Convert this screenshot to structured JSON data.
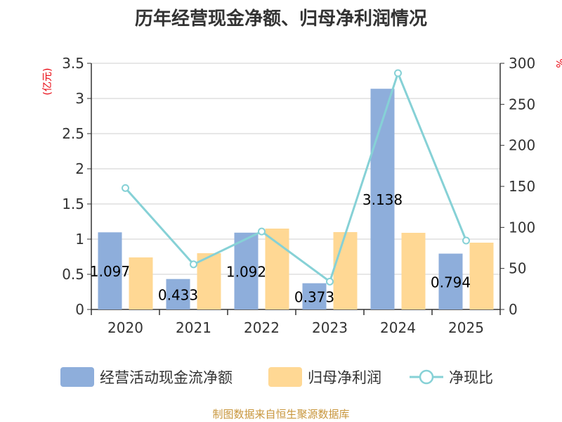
{
  "chart_data": {
    "type": "bar",
    "title": "历年经营现金净额、归母净利润情况",
    "categories": [
      "2020",
      "2021",
      "2022",
      "2023",
      "2024",
      "2025"
    ],
    "series": [
      {
        "name": "经营活动现金流净额",
        "kind": "bar",
        "axis": "left",
        "color": "#8eaedb",
        "values": [
          1.097,
          0.433,
          1.092,
          0.373,
          3.138,
          0.794
        ],
        "labels_shown": true
      },
      {
        "name": "归母净利润",
        "kind": "bar",
        "axis": "left",
        "color": "#ffd894",
        "values": [
          0.74,
          0.8,
          1.15,
          1.1,
          1.09,
          0.95
        ],
        "labels_shown": false
      },
      {
        "name": "净现比",
        "kind": "line",
        "axis": "right",
        "color": "#86d1d6",
        "values": [
          148,
          55,
          95,
          34,
          288,
          84
        ],
        "labels_shown": false
      }
    ],
    "y_left": {
      "label": "(亿元)",
      "lim": [
        0,
        3.5
      ],
      "ticks": [
        0,
        0.5,
        1,
        1.5,
        2,
        2.5,
        3,
        3.5
      ],
      "tick_labels": [
        "0",
        "0.5",
        "1",
        "1.5",
        "2",
        "2.5",
        "3",
        "3.5"
      ]
    },
    "y_right": {
      "label": "%",
      "lim": [
        0,
        300
      ],
      "ticks": [
        0,
        50,
        100,
        150,
        200,
        250,
        300
      ],
      "tick_labels": [
        "0",
        "50",
        "100",
        "150",
        "200",
        "250",
        "300"
      ]
    },
    "grid": true,
    "legend": "bottom",
    "source": "制图数据来自恒生聚源数据库"
  }
}
